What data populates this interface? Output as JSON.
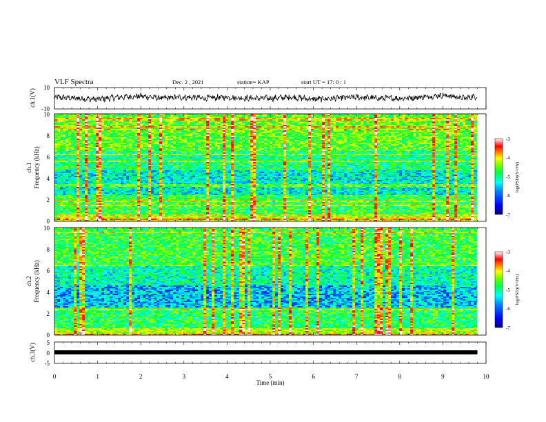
{
  "header": {
    "title": "VLF Spectra",
    "date": "Dec. 2 , 2021",
    "station": "station= KAP",
    "start": "start  UT =   17: 0  : 1"
  },
  "colors": {
    "trace": "#000000",
    "colormap": [
      "#00008f",
      "#0000ff",
      "#0080ff",
      "#00ffff",
      "#00ff80",
      "#40ff00",
      "#ffff00",
      "#ff8000",
      "#ff0000",
      "#ffffff"
    ]
  },
  "chart_data": [
    {
      "type": "line",
      "ylabel": "ch.1(V)",
      "ylim": [
        -10,
        10
      ],
      "yticks": [
        "10",
        "-10"
      ],
      "xlim": [
        0,
        10
      ],
      "series": [
        {
          "x": [
            0,
            0.5,
            1,
            1.5,
            2,
            2.5,
            3,
            3.5,
            4,
            4.5,
            5,
            5.5,
            6,
            6.5,
            7,
            7.5,
            8,
            8.5,
            9,
            9.5,
            9.8
          ],
          "y": [
            1,
            0,
            -1,
            1,
            2,
            0,
            1,
            0,
            1,
            0,
            0,
            1,
            -1,
            0,
            1,
            0,
            0,
            1,
            3,
            0,
            2
          ]
        }
      ]
    },
    {
      "type": "heatmap",
      "ylabel": "ch.1\nFrequency (kHz)",
      "ylim": [
        0,
        10
      ],
      "yticks": [
        "0",
        "2",
        "4",
        "6",
        "8",
        "10"
      ],
      "xlim": [
        0,
        10
      ],
      "data_end_min": 9.8,
      "colorbar": {
        "label": "log(PSD)(V²/Hz)",
        "range": [
          -7,
          -3
        ],
        "ticks": [
          "-3",
          "-4",
          "-5",
          "-6",
          "-7"
        ]
      }
    },
    {
      "type": "heatmap",
      "ylabel": "ch.2\nFrequency (kHz)",
      "ylim": [
        0,
        10
      ],
      "yticks": [
        "0",
        "2",
        "4",
        "6",
        "8",
        "10"
      ],
      "xlim": [
        0,
        10
      ],
      "data_end_min": 9.8,
      "colorbar": {
        "label": "log(PSD)(V²/Hz)",
        "range": [
          -7,
          -3
        ],
        "ticks": [
          "-3",
          "-4",
          "-5",
          "-6",
          "-7"
        ]
      }
    },
    {
      "type": "line",
      "ylabel": "ch.3(V)",
      "ylim": [
        -5,
        5
      ],
      "yticks": [
        "5",
        "0",
        "-5"
      ],
      "xlim": [
        0,
        10
      ],
      "xlabel": "Time  (min)",
      "xticks": [
        "0",
        "1",
        "2",
        "3",
        "4",
        "5",
        "6",
        "7",
        "8",
        "9",
        "10"
      ],
      "series": [
        {
          "x": [
            0,
            9.8
          ],
          "y": [
            0,
            0
          ]
        }
      ]
    }
  ]
}
